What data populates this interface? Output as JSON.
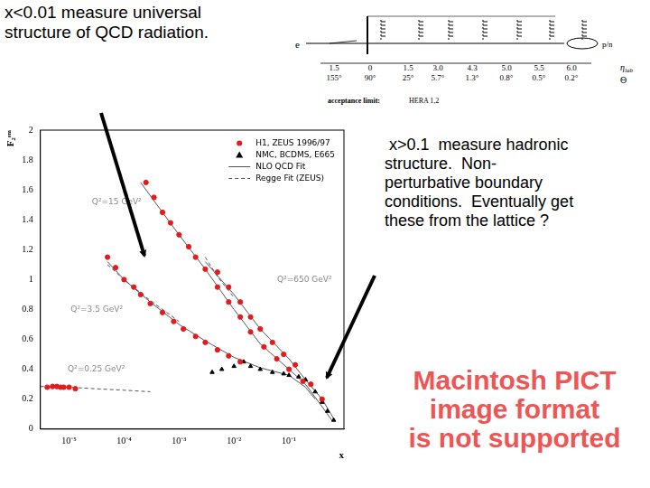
{
  "slide": {
    "left_text": [
      "x<0.01 measure universal",
      "structure of QCD radiation."
    ],
    "right_text": [
      " x>0.1  measure hadronic",
      "structure.  Non-",
      "perturbative boundary",
      "conditions.  Eventually get",
      "these from the lattice ?"
    ],
    "placeholder": [
      "Macintosh PICT",
      "image format",
      "is not supported"
    ],
    "detector": {
      "beam_left": "e",
      "beam_right": "p/n",
      "eta_label": "η",
      "eta_sub": "lab",
      "theta_label": "Θ",
      "eta": [
        "1.5",
        "0",
        "1.5",
        "3.0",
        "4.3",
        "5.0",
        "5.5",
        "6.0"
      ],
      "theta": [
        "155°",
        "90°",
        "25°",
        "5.7°",
        "1.3°",
        "0.8°",
        "0.5°",
        "0.2°"
      ],
      "acceptance": "acceptance limit:",
      "acceptance_value": "HERA 1,2"
    }
  },
  "chart_data": {
    "type": "scatter",
    "y_label": "F₂ᵉᵐ",
    "x_label": "x",
    "log": "x",
    "grid": false,
    "legend": "upper right",
    "xlim": [
      3e-06,
      1
    ],
    "xticks": [
      {
        "value": 1e-05,
        "label": "10⁻⁵"
      },
      {
        "value": 0.0001,
        "label": "10⁻⁴"
      },
      {
        "value": 0.001,
        "label": "10⁻³"
      },
      {
        "value": 0.01,
        "label": "10⁻²"
      },
      {
        "value": 0.1,
        "label": "10⁻¹"
      }
    ],
    "ylim": [
      0,
      2
    ],
    "yticks": [
      0,
      0.2,
      0.4,
      0.6,
      0.8,
      1,
      1.2,
      1.4,
      1.6,
      1.8,
      2
    ],
    "annotations": [
      "Q²=15 GeV²",
      "Q²=3.5 GeV²",
      "Q²=0.25 GeV²",
      "Q²=650 GeV²"
    ],
    "series": [
      {
        "name": "H1, ZEUS 1996/97",
        "type": "scatter",
        "color": "#e41a1c",
        "marker": "circle",
        "x": [
          4e-06,
          5e-06,
          6e-06,
          7e-06,
          8e-06,
          1e-05,
          1.3e-05,
          5e-05,
          7e-05,
          0.0001,
          0.00015,
          0.0002,
          0.0003,
          0.0005,
          0.0008,
          0.0012,
          0.002,
          0.003,
          0.005,
          0.008,
          0.013,
          0.00025,
          0.00035,
          0.0005,
          0.0007,
          0.001,
          0.0015,
          0.002,
          0.003,
          0.005,
          0.008,
          0.013,
          0.02,
          0.035,
          0.06,
          0.1,
          0.18,
          0.005,
          0.008,
          0.013,
          0.02,
          0.03,
          0.05,
          0.08,
          0.13,
          0.25,
          0.4
        ],
        "values": [
          0.28,
          0.285,
          0.285,
          0.28,
          0.28,
          0.28,
          0.27,
          1.15,
          1.08,
          1.0,
          0.95,
          0.9,
          0.84,
          0.78,
          0.72,
          0.67,
          0.62,
          0.58,
          0.53,
          0.49,
          0.45,
          1.65,
          1.55,
          1.45,
          1.38,
          1.3,
          1.22,
          1.15,
          1.07,
          0.95,
          0.85,
          0.75,
          0.65,
          0.55,
          0.47,
          0.4,
          0.32,
          1.05,
          0.95,
          0.85,
          0.75,
          0.67,
          0.58,
          0.5,
          0.43,
          0.3,
          0.2
        ]
      },
      {
        "name": "NMC, BCDMS, E665",
        "type": "scatter",
        "color": "#000000",
        "marker": "triangle",
        "x": [
          0.004,
          0.006,
          0.01,
          0.015,
          0.02,
          0.03,
          0.05,
          0.08,
          0.1,
          0.15,
          0.2,
          0.3,
          0.4,
          0.5,
          0.65
        ],
        "values": [
          0.38,
          0.4,
          0.42,
          0.45,
          0.42,
          0.4,
          0.38,
          0.37,
          0.36,
          0.35,
          0.33,
          0.25,
          0.18,
          0.12,
          0.06
        ]
      },
      {
        "name": "NLO QCD Fit",
        "type": "line",
        "color": "#555555",
        "line_style": "solid",
        "x": [
          5e-05,
          0.0001,
          0.0003,
          0.001,
          0.003,
          0.01,
          0.03,
          0.1,
          0.2,
          0.3,
          null,
          0.0002,
          0.0005,
          0.001,
          0.003,
          0.01,
          0.03,
          0.1,
          0.2,
          0.4,
          0.6,
          null,
          0.003,
          0.01,
          0.03,
          0.1,
          0.2,
          0.4,
          0.7
        ],
        "values": [
          1.12,
          1.0,
          0.85,
          0.7,
          0.59,
          0.48,
          0.41,
          0.36,
          0.28,
          0.2,
          null,
          1.65,
          1.45,
          1.3,
          1.07,
          0.8,
          0.57,
          0.4,
          0.3,
          0.15,
          0.06,
          null,
          1.12,
          0.9,
          0.67,
          0.47,
          0.33,
          0.2,
          0.05
        ]
      },
      {
        "name": "Regge Fit (ZEUS)",
        "type": "line",
        "color": "#555555",
        "line_style": "dashed",
        "x": [
          3e-06,
          1e-05,
          3e-05,
          0.0001,
          0.0003,
          null,
          5e-05,
          0.0001,
          0.0003,
          0.001,
          null,
          0.003,
          0.005,
          0.01
        ],
        "values": [
          0.285,
          0.28,
          0.27,
          0.26,
          0.25,
          null,
          1.1,
          1.0,
          0.86,
          0.72,
          null,
          1.15,
          1.02,
          0.88
        ]
      }
    ]
  }
}
